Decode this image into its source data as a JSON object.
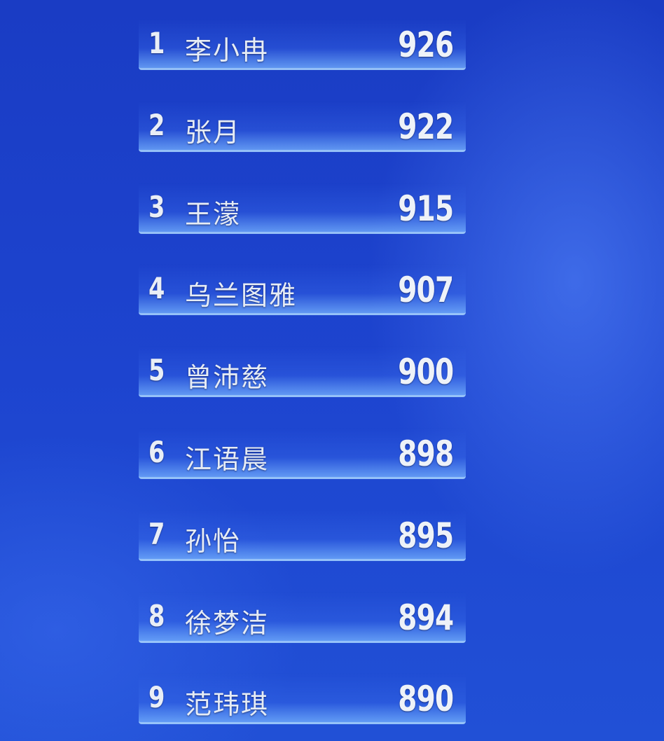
{
  "leaderboard": {
    "entries": [
      {
        "rank": "1",
        "name": "李小冉",
        "score": "926"
      },
      {
        "rank": "2",
        "name": "张月",
        "score": "922"
      },
      {
        "rank": "3",
        "name": "王濛",
        "score": "915"
      },
      {
        "rank": "4",
        "name": "乌兰图雅",
        "score": "907"
      },
      {
        "rank": "5",
        "name": "曾沛慈",
        "score": "900"
      },
      {
        "rank": "6",
        "name": "江语晨",
        "score": "898"
      },
      {
        "rank": "7",
        "name": "孙怡",
        "score": "895"
      },
      {
        "rank": "8",
        "name": "徐梦洁",
        "score": "894"
      },
      {
        "rank": "9",
        "name": "范玮琪",
        "score": "890"
      }
    ]
  },
  "colors": {
    "background": "#1d44cf",
    "bar_highlight": "#aad7ff",
    "text": "#eef2f8"
  }
}
